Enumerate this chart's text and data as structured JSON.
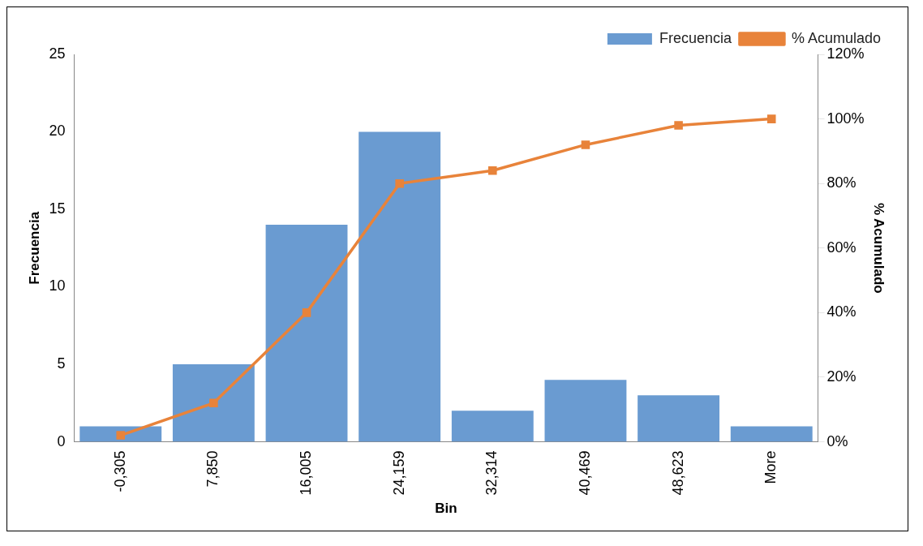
{
  "chart_data": {
    "type": "bar",
    "categories": [
      "-0,305",
      "7,850",
      "16,005",
      "24,159",
      "32,314",
      "40,469",
      "48,623",
      "More"
    ],
    "series": [
      {
        "name": "Frecuencia",
        "color": "#6a9bd1",
        "values": [
          1,
          5,
          14,
          20,
          2,
          4,
          3,
          1
        ]
      },
      {
        "name": "% Acumulado",
        "type": "line",
        "axis": "y2",
        "color": "#e8833a",
        "values": [
          2,
          12,
          40,
          80,
          84,
          92,
          98,
          100
        ]
      }
    ],
    "xlabel": "Bin",
    "ylabel": "Frecuencia",
    "y2label": "% Acumulado",
    "ylim": [
      0,
      25
    ],
    "yticks": [
      0,
      5,
      10,
      15,
      20,
      25
    ],
    "y2lim": [
      0,
      120
    ],
    "y2ticks": [
      {
        "value": 0,
        "label": "0%"
      },
      {
        "value": 20,
        "label": "20%"
      },
      {
        "value": 40,
        "label": "40%"
      },
      {
        "value": 60,
        "label": "60%"
      },
      {
        "value": 80,
        "label": "80%"
      },
      {
        "value": 100,
        "label": "100%"
      },
      {
        "value": 120,
        "label": "120%"
      }
    ],
    "legend": "top right",
    "marker": "square"
  }
}
